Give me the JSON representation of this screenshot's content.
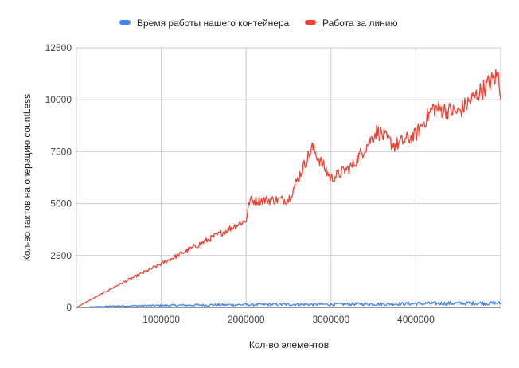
{
  "chart_data": {
    "type": "line",
    "xlabel": "Кол-во элементов",
    "ylabel": "Кол-во тактов на операцию countLess",
    "xlim": [
      0,
      5000000
    ],
    "ylim": [
      0,
      12500
    ],
    "x_ticks": [
      1000000,
      2000000,
      3000000,
      4000000
    ],
    "x_tick_labels": [
      "1000000",
      "2000000",
      "3000000",
      "4000000"
    ],
    "y_ticks": [
      0,
      2500,
      5000,
      7500,
      10000,
      12500
    ],
    "y_tick_labels": [
      "0",
      "2500",
      "5000",
      "7500",
      "10000",
      "12500"
    ],
    "grid": true,
    "legend_position": "top-center",
    "series": [
      {
        "name": "Время работы нашего контейнера",
        "color": "#4285f4",
        "x": [
          0,
          500000,
          1000000,
          1500000,
          2000000,
          2500000,
          3000000,
          3500000,
          4000000,
          4500000,
          5000000
        ],
        "y": [
          0,
          70,
          90,
          110,
          130,
          140,
          150,
          160,
          180,
          200,
          200
        ]
      },
      {
        "name": "Работа за линию",
        "color": "#ea4335",
        "x": [
          0,
          500000,
          1000000,
          1500000,
          2000000,
          2040000,
          2500000,
          2780000,
          3000000,
          3250000,
          3540000,
          3750000,
          4000000,
          4200000,
          4500000,
          4970000,
          5000000
        ],
        "y": [
          0,
          1100,
          2100,
          3150,
          4200,
          5150,
          5200,
          7700,
          6200,
          6800,
          8500,
          7800,
          8300,
          9600,
          9400,
          11200,
          10400
        ]
      }
    ]
  }
}
